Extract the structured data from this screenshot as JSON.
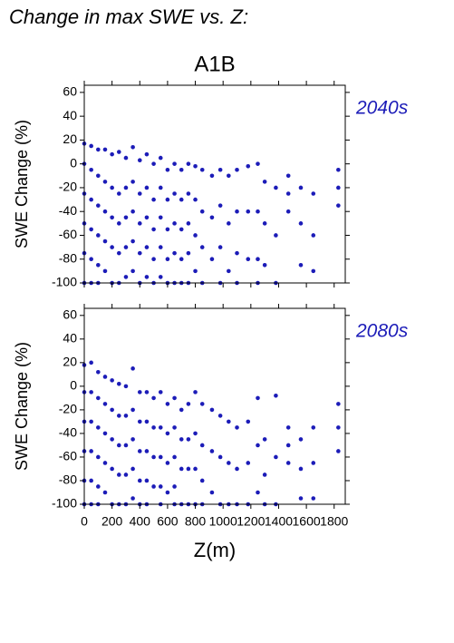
{
  "title": "Change in max SWE vs. Z:",
  "subtitle": "A1B",
  "chart_data": [
    {
      "type": "scatter",
      "annotation": "2040s",
      "ylabel": "SWE Change (%)",
      "color": "#1c1cb8",
      "xlim": [
        0,
        1880
      ],
      "ylim": [
        -100,
        66
      ],
      "xticks": [
        0,
        200,
        400,
        600,
        800,
        1000,
        1200,
        1400,
        1600,
        1800
      ],
      "yticks": [
        -100,
        -80,
        -60,
        -40,
        -20,
        0,
        20,
        40,
        60
      ],
      "show_xtick_labels": false,
      "x": [
        0,
        0,
        0,
        0,
        0,
        0,
        50,
        50,
        50,
        50,
        50,
        50,
        100,
        100,
        100,
        100,
        100,
        100,
        150,
        150,
        150,
        150,
        150,
        200,
        200,
        200,
        200,
        200,
        250,
        250,
        250,
        250,
        250,
        300,
        300,
        300,
        300,
        300,
        350,
        350,
        350,
        350,
        350,
        400,
        400,
        400,
        400,
        400,
        450,
        450,
        450,
        450,
        450,
        500,
        500,
        500,
        500,
        500,
        550,
        550,
        550,
        550,
        550,
        600,
        600,
        600,
        600,
        600,
        650,
        650,
        650,
        650,
        650,
        700,
        700,
        700,
        700,
        700,
        750,
        750,
        750,
        750,
        750,
        800,
        800,
        800,
        800,
        850,
        850,
        850,
        850,
        920,
        920,
        920,
        980,
        980,
        980,
        980,
        1040,
        1040,
        1040,
        1100,
        1100,
        1100,
        1100,
        1180,
        1180,
        1180,
        1250,
        1250,
        1250,
        1250,
        1300,
        1300,
        1300,
        1380,
        1380,
        1380,
        1470,
        1470,
        1470,
        1560,
        1560,
        1560,
        1650,
        1650,
        1650,
        1830,
        1830,
        1830
      ],
      "values": [
        17,
        0,
        -25,
        -50,
        -75,
        -100,
        15,
        -5,
        -30,
        -55,
        -80,
        -100,
        12,
        -10,
        -35,
        -60,
        -85,
        -100,
        12,
        -15,
        -40,
        -65,
        -90,
        8,
        -20,
        -45,
        -70,
        -100,
        10,
        -25,
        -50,
        -75,
        -100,
        5,
        -20,
        -45,
        -70,
        -95,
        14,
        -15,
        -40,
        -65,
        -90,
        3,
        -25,
        -50,
        -75,
        -100,
        8,
        -20,
        -45,
        -70,
        -95,
        0,
        -30,
        -55,
        -80,
        -100,
        5,
        -20,
        -45,
        -70,
        -95,
        -5,
        -30,
        -55,
        -80,
        -100,
        0,
        -25,
        -50,
        -75,
        -100,
        -5,
        -30,
        -55,
        -80,
        -100,
        0,
        -25,
        -50,
        -75,
        -100,
        -2,
        -30,
        -60,
        -90,
        -5,
        -40,
        -70,
        -100,
        -10,
        -45,
        -80,
        -5,
        -35,
        -70,
        -100,
        -10,
        -50,
        -90,
        -5,
        -40,
        -75,
        -100,
        -2,
        -40,
        -80,
        0,
        -40,
        -80,
        -100,
        -15,
        -50,
        -85,
        -20,
        -60,
        -100,
        -10,
        -25,
        -40,
        -20,
        -50,
        -85,
        -25,
        -60,
        -90,
        -5,
        -20,
        -35
      ]
    },
    {
      "type": "scatter",
      "annotation": "2080s",
      "ylabel": "SWE Change (%)",
      "xlabel": "Z(m)",
      "color": "#1c1cb8",
      "xlim": [
        0,
        1880
      ],
      "ylim": [
        -100,
        66
      ],
      "xticks": [
        0,
        200,
        400,
        600,
        800,
        1000,
        1200,
        1400,
        1600,
        1800
      ],
      "yticks": [
        -100,
        -80,
        -60,
        -40,
        -20,
        0,
        20,
        40,
        60
      ],
      "show_xtick_labels": true,
      "x": [
        0,
        0,
        0,
        0,
        0,
        0,
        50,
        50,
        50,
        50,
        50,
        50,
        100,
        100,
        100,
        100,
        100,
        100,
        150,
        150,
        150,
        150,
        150,
        200,
        200,
        200,
        200,
        200,
        250,
        250,
        250,
        250,
        250,
        300,
        300,
        300,
        300,
        300,
        350,
        350,
        350,
        350,
        350,
        400,
        400,
        400,
        400,
        400,
        450,
        450,
        450,
        450,
        450,
        500,
        500,
        500,
        500,
        550,
        550,
        550,
        550,
        550,
        600,
        600,
        600,
        600,
        650,
        650,
        650,
        650,
        650,
        700,
        700,
        700,
        700,
        750,
        750,
        750,
        750,
        800,
        800,
        800,
        800,
        850,
        850,
        850,
        850,
        920,
        920,
        920,
        980,
        980,
        980,
        1040,
        1040,
        1040,
        1100,
        1100,
        1100,
        1180,
        1180,
        1180,
        1250,
        1250,
        1250,
        1300,
        1300,
        1300,
        1380,
        1380,
        1380,
        1470,
        1470,
        1470,
        1560,
        1560,
        1560,
        1650,
        1650,
        1650,
        1830,
        1830,
        1830
      ],
      "values": [
        18,
        -5,
        -30,
        -55,
        -80,
        -100,
        20,
        -5,
        -30,
        -55,
        -80,
        -100,
        12,
        -10,
        -35,
        -60,
        -85,
        -100,
        8,
        -15,
        -40,
        -65,
        -90,
        5,
        -20,
        -45,
        -70,
        -100,
        2,
        -25,
        -50,
        -75,
        -100,
        0,
        -25,
        -50,
        -75,
        -100,
        15,
        -20,
        -45,
        -70,
        -95,
        -5,
        -30,
        -55,
        -80,
        -100,
        -5,
        -30,
        -55,
        -80,
        -100,
        -10,
        -35,
        -60,
        -85,
        -5,
        -35,
        -60,
        -85,
        -100,
        -15,
        -40,
        -65,
        -90,
        -10,
        -35,
        -60,
        -85,
        -100,
        -20,
        -45,
        -70,
        -100,
        -15,
        -45,
        -70,
        -100,
        -5,
        -40,
        -70,
        -100,
        -15,
        -50,
        -80,
        -100,
        -20,
        -55,
        -90,
        -25,
        -60,
        -100,
        -30,
        -65,
        -100,
        -35,
        -70,
        -100,
        -30,
        -65,
        -100,
        -10,
        -50,
        -90,
        -45,
        -75,
        -100,
        -8,
        -60,
        -100,
        -35,
        -50,
        -65,
        -45,
        -70,
        -95,
        -35,
        -65,
        -95,
        -15,
        -35,
        -55
      ]
    }
  ]
}
